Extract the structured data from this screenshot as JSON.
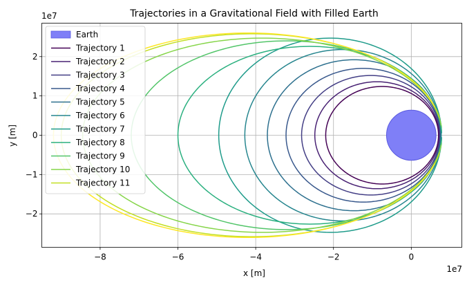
{
  "chart_data": {
    "type": "line",
    "title": "Trajectories in a Gravitational Field with Filled Earth",
    "xlabel": "x [m]",
    "ylabel": "y [m]",
    "x_offset_label": "1e7",
    "y_offset_label": "1e7",
    "xlim": [
      -9.5,
      1.3
    ],
    "ylim": [
      -2.85,
      2.85
    ],
    "x_ticks": [
      -8,
      -6,
      -4,
      -2,
      0
    ],
    "x_tick_labels": [
      "−8",
      "−6",
      "−4",
      "−2",
      "0"
    ],
    "y_ticks": [
      -2,
      -1,
      0,
      1,
      2
    ],
    "y_tick_labels": [
      "−2",
      "−1",
      "0",
      "1",
      "2"
    ],
    "grid": true,
    "legend_position": "top-left",
    "earth": {
      "label": "Earth",
      "center": [
        0,
        0
      ],
      "radius": 0.637,
      "color": "#7f7ff7"
    },
    "series": [
      {
        "name": "Trajectory 1",
        "color": "#440154",
        "right": 0.7,
        "left": -2.2,
        "b": 1.24,
        "gap": 0
      },
      {
        "name": "Trajectory 2",
        "color": "#482173",
        "right": 0.72,
        "left": -2.48,
        "b": 1.36,
        "gap": 0
      },
      {
        "name": "Trajectory 3",
        "color": "#433e85",
        "right": 0.74,
        "left": -2.82,
        "b": 1.52,
        "gap": 0
      },
      {
        "name": "Trajectory 4",
        "color": "#38588c",
        "right": 0.75,
        "left": -3.22,
        "b": 1.7,
        "gap": 0
      },
      {
        "name": "Trajectory 5",
        "color": "#2d708e",
        "right": 0.76,
        "left": -3.7,
        "b": 1.92,
        "gap": 0
      },
      {
        "name": "Trajectory 6",
        "color": "#25858e",
        "right": 0.77,
        "left": -4.28,
        "b": 2.18,
        "gap": 0
      },
      {
        "name": "Trajectory 7",
        "color": "#1e9b8a",
        "right": 0.78,
        "left": -4.95,
        "b": 2.47,
        "gap": 0.02
      },
      {
        "name": "Trajectory 8",
        "color": "#2ab07f",
        "right": 0.78,
        "left": -6.0,
        "b": 2.26,
        "gap": 0.05
      },
      {
        "name": "Trajectory 9",
        "color": "#52c569",
        "right": 0.79,
        "left": -7.2,
        "b": 2.4,
        "gap": 0.08
      },
      {
        "name": "Trajectory 10",
        "color": "#86d549",
        "right": 0.79,
        "left": -8.45,
        "b": 2.47,
        "gap": 0.1
      },
      {
        "name": "Trajectory 11",
        "color": "#c2df23",
        "right": 0.8,
        "left": -9.0,
        "b": 2.58,
        "gap": 0.17
      },
      {
        "name": "",
        "color": "#fde725",
        "right": 0.8,
        "left": -9.2,
        "b": 2.6,
        "gap": 0.28
      }
    ]
  }
}
